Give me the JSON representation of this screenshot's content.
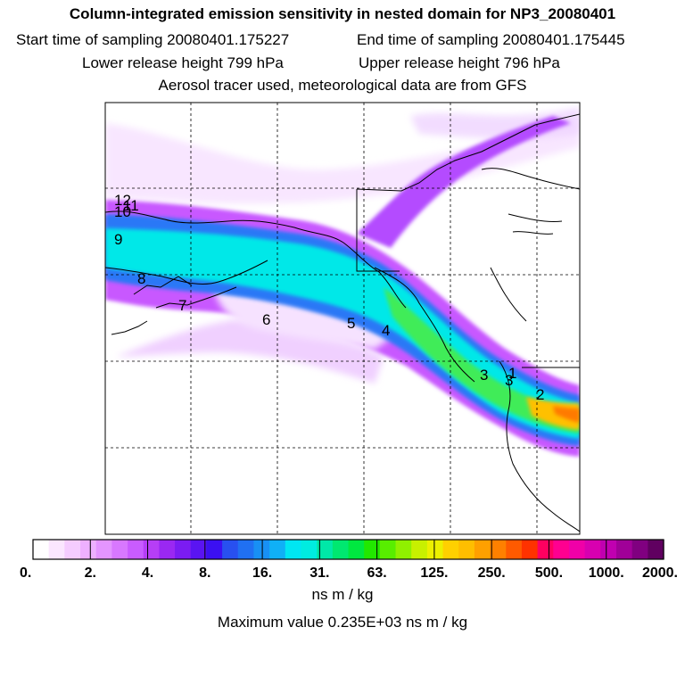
{
  "header": {
    "title": "Column-integrated emission sensitivity in nested domain for NP3_20080401",
    "start_label": "Start time of sampling 20080401.175227",
    "end_label": "End time of sampling 20080401.175445",
    "lower_label": "Lower release height  799 hPa",
    "upper_label": "Upper release height  796 hPa",
    "tracer_note": "Aerosol tracer used, meteorological data are from GFS"
  },
  "map": {
    "markers": [
      "12",
      "11",
      "10",
      "9",
      "8",
      "7",
      "6",
      "5",
      "4",
      "3",
      "3",
      "1",
      "2"
    ]
  },
  "colorbar": {
    "tick_labels": [
      "0.",
      "2.",
      "4.",
      "8.",
      "16.",
      "31.",
      "63.",
      "125.",
      "250.",
      "500.",
      "1000.",
      "2000."
    ],
    "colors": [
      "#ffffff",
      "#fbe6ff",
      "#f5ccff",
      "#eeb0ff",
      "#e495ff",
      "#d878ff",
      "#c95cff",
      "#b63ef6",
      "#9a28f2",
      "#7b1cf2",
      "#5a14f2",
      "#3b10f2",
      "#2850f0",
      "#2070f2",
      "#1890f4",
      "#10b0f6",
      "#00e6f2",
      "#00ece0",
      "#00e8a8",
      "#00e870",
      "#00e840",
      "#22e800",
      "#58ee00",
      "#90f000",
      "#c8f000",
      "#ecf000",
      "#ffd000",
      "#ffbe00",
      "#ffa000",
      "#ff8000",
      "#ff5a00",
      "#ff3200",
      "#ff0060",
      "#ff0090",
      "#f000a8",
      "#d800b0",
      "#c000b0",
      "#a00098",
      "#800080",
      "#600060"
    ],
    "unit": "ns m / kg",
    "max_value_label": "Maximum value  0.235E+03 ns m / kg"
  }
}
